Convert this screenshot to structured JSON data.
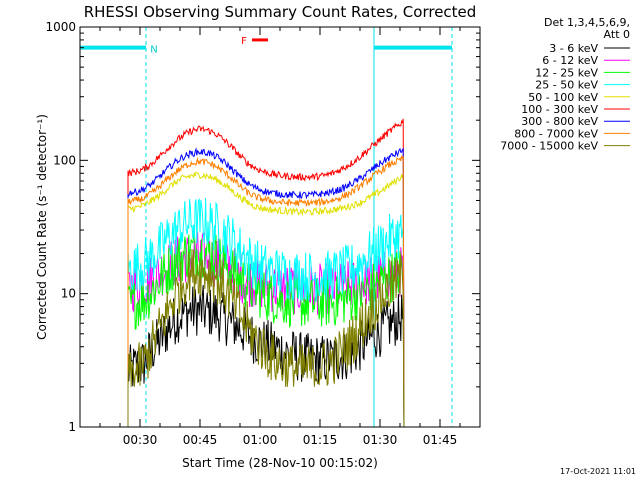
{
  "chart_data": {
    "type": "line",
    "title": "RHESSI Observing Summary Count Rates, Corrected",
    "xlabel": "Start Time (28-Nov-10 00:15:02)",
    "ylabel": "Corrected Count Rate (s⁻¹ detector⁻¹)",
    "yscale": "log",
    "ylim": [
      1,
      1000
    ],
    "xlim_minutes": [
      0,
      100
    ],
    "ytick_values": [
      1,
      10,
      100,
      1000
    ],
    "ytick_labels": [
      "1",
      "10",
      "100",
      "1000"
    ],
    "xticks": [
      {
        "minutes": 15,
        "label": "00:30"
      },
      {
        "minutes": 30,
        "label": "00:45"
      },
      {
        "minutes": 45,
        "label": "01:00"
      },
      {
        "minutes": 60,
        "label": "01:15"
      },
      {
        "minutes": 75,
        "label": "01:30"
      },
      {
        "minutes": 90,
        "label": "01:45"
      }
    ],
    "legend_header": [
      "Det 1,3,4,5,6,9,",
      "Att 0"
    ],
    "legend_placement": "right",
    "data_start_minutes": 12,
    "data_end_minutes": 81,
    "night_bars": [
      {
        "start": 0,
        "end": 16.5,
        "label": "N"
      },
      {
        "start": 73.5,
        "end": 93,
        "label": ""
      }
    ],
    "flare_marker": {
      "label": "F",
      "start": 43,
      "end": 47,
      "level": 800
    },
    "x": [
      12,
      14,
      16,
      18,
      20,
      22,
      24,
      26,
      28,
      30,
      32,
      34,
      36,
      38,
      40,
      42,
      44,
      46,
      48,
      50,
      52,
      54,
      56,
      58,
      60,
      62,
      64,
      66,
      68,
      70,
      72,
      74,
      76,
      78,
      80,
      81
    ],
    "series": [
      {
        "name": "3 - 6 keV",
        "color": "#000000",
        "values": [
          2.6,
          2.8,
          3.0,
          3.8,
          4.5,
          5.5,
          6.5,
          7.2,
          7.5,
          7.5,
          7.3,
          7.0,
          6.5,
          6.0,
          5.5,
          5.0,
          4.5,
          4.2,
          4.0,
          3.8,
          3.6,
          3.4,
          3.3,
          3.2,
          3.2,
          3.2,
          3.3,
          3.4,
          3.6,
          4.0,
          4.5,
          5.0,
          5.5,
          6.0,
          6.5,
          7.0
        ]
      },
      {
        "name": "6 - 12 keV",
        "color": "#ff00ff",
        "values": [
          11,
          11.5,
          12,
          13,
          14.5,
          16,
          17.5,
          18.5,
          19,
          19,
          18.5,
          17.5,
          16.5,
          15,
          13.5,
          12.5,
          12,
          11.5,
          11.2,
          11,
          11,
          10.8,
          10.8,
          10.8,
          10.8,
          10.9,
          11,
          11.2,
          11.5,
          12,
          12.5,
          13,
          13.5,
          14,
          14.5,
          15
        ]
      },
      {
        "name": "12 - 25 keV",
        "color": "#00ff00",
        "values": [
          8,
          8.5,
          9,
          10.5,
          12.5,
          15,
          17.5,
          19.5,
          21,
          21,
          20.5,
          19,
          17,
          15,
          13,
          11.5,
          10.5,
          9.8,
          9.3,
          9,
          8.8,
          8.6,
          8.5,
          8.5,
          8.5,
          8.6,
          8.8,
          9,
          9.5,
          10,
          10.8,
          11.5,
          12.5,
          13.5,
          14.5,
          15
        ]
      },
      {
        "name": "25 - 50 keV",
        "color": "#00ffff",
        "values": [
          15,
          16,
          17,
          19,
          22,
          26,
          29.5,
          32.5,
          34.5,
          35,
          34,
          31.5,
          28.5,
          25,
          21.5,
          18.5,
          16.5,
          15.5,
          14.8,
          14.3,
          14,
          13.8,
          13.6,
          13.5,
          13.5,
          13.6,
          14,
          14.5,
          15.5,
          17,
          19,
          21,
          23.5,
          26,
          28,
          30
        ]
      },
      {
        "name": "50 - 100 keV",
        "color": "#e0e000",
        "values": [
          43,
          44,
          46,
          50,
          55,
          62,
          69,
          74,
          77,
          78,
          76,
          72,
          66,
          59,
          53,
          48,
          45,
          43.5,
          42.5,
          42,
          41.5,
          41,
          41,
          41,
          41.5,
          42,
          43,
          44,
          46,
          48,
          52,
          56,
          61,
          67,
          74,
          80
        ]
      },
      {
        "name": "100 - 300 keV",
        "color": "#ff0000",
        "values": [
          80,
          82,
          86,
          95,
          108,
          124,
          140,
          155,
          167,
          172,
          168,
          158,
          142,
          125,
          108,
          95,
          87,
          82,
          79,
          77,
          76,
          75,
          75,
          75,
          76,
          78,
          82,
          88,
          96,
          106,
          120,
          135,
          152,
          170,
          188,
          200
        ]
      },
      {
        "name": "300 - 800 keV",
        "color": "#0000ff",
        "values": [
          57,
          58,
          61,
          67,
          76,
          87,
          98,
          107,
          113,
          116,
          114,
          107,
          97,
          86,
          75,
          67,
          62,
          59,
          57,
          56,
          55,
          55,
          55,
          55,
          56,
          57,
          59,
          62,
          67,
          73,
          81,
          90,
          99,
          108,
          116,
          123
        ]
      },
      {
        "name": "800 - 7000 keV",
        "color": "#ff8000",
        "values": [
          49,
          50,
          52,
          57,
          64,
          73,
          82,
          90,
          96,
          98,
          96,
          90,
          82,
          73,
          64,
          57,
          53,
          51,
          49.5,
          48.5,
          48,
          48,
          48,
          48,
          48.5,
          49.5,
          51,
          54,
          58,
          64,
          71,
          79,
          87,
          95,
          100,
          106
        ]
      },
      {
        "name": "7000 - 15000 keV",
        "color": "#808000",
        "values": [
          2.3,
          2.6,
          3.0,
          4.0,
          5.5,
          7.5,
          10,
          12.5,
          14.5,
          15,
          14.5,
          13,
          11,
          9,
          7,
          5.5,
          4.5,
          3.8,
          3.3,
          3.0,
          2.8,
          2.7,
          2.7,
          2.7,
          2.8,
          3.0,
          3.3,
          3.8,
          4.5,
          5.5,
          7,
          8.5,
          10,
          11.5,
          13,
          14
        ]
      }
    ],
    "timestamp": "17-Oct-2021 11:01"
  }
}
